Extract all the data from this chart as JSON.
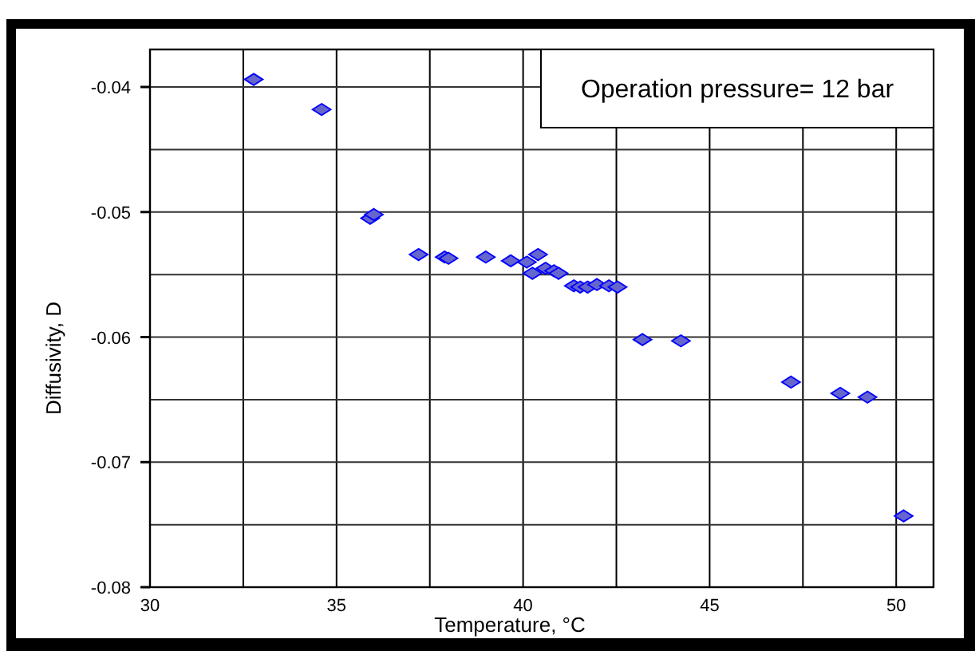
{
  "chart_data": {
    "type": "scatter",
    "xlabel": "Temperature, °C",
    "ylabel": "Diffusivity, D",
    "annotations": [
      "Operation pressure= 12 bar"
    ],
    "x": [
      32.78,
      34.6,
      35.9,
      36.0,
      37.2,
      37.9,
      38.0,
      39.0,
      39.67,
      40.1,
      40.25,
      40.4,
      40.6,
      40.83,
      40.95,
      41.36,
      41.53,
      41.73,
      41.98,
      42.3,
      42.53,
      43.2,
      44.23,
      47.18,
      48.5,
      49.23,
      50.2
    ],
    "series": [
      {
        "color": "#6666cc",
        "values": [
          -0.0394,
          -0.0418,
          -0.0505,
          -0.0502,
          -0.0534,
          -0.0536,
          -0.0537,
          -0.0536,
          -0.0539,
          -0.054,
          -0.0549,
          -0.0534,
          -0.0545,
          -0.0547,
          -0.0549,
          -0.0559,
          -0.056,
          -0.056,
          -0.0558,
          -0.0559,
          -0.056,
          -0.0602,
          -0.0603,
          -0.0636,
          -0.0645,
          -0.0648,
          -0.0743
        ]
      }
    ],
    "xlim": [
      30,
      51
    ],
    "ylim": [
      -0.08,
      -0.037
    ],
    "xticks": [
      30,
      {
        "value": 32.5,
        "label": null
      },
      35,
      {
        "value": 37.5,
        "label": null
      },
      40,
      {
        "value": 42.5,
        "label": null
      },
      45,
      {
        "value": 47.5,
        "label": null
      },
      50
    ],
    "yticks": [
      -0.08,
      {
        "value": -0.075,
        "label": null
      },
      -0.07,
      {
        "value": -0.065,
        "label": null
      },
      -0.06,
      {
        "value": -0.055,
        "label": null
      },
      -0.05,
      {
        "value": -0.045,
        "label": null
      },
      -0.04
    ],
    "grid": true,
    "marker": "diamond"
  }
}
